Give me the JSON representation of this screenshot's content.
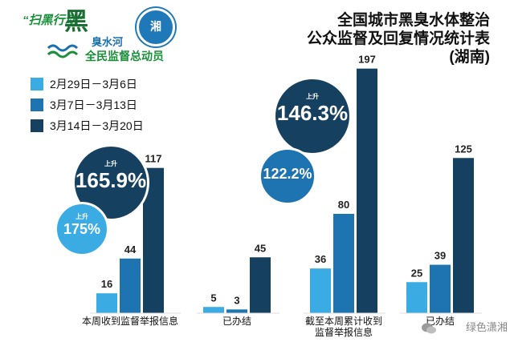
{
  "logo": {
    "tag": "“扫黑行动”",
    "big": "黑",
    "sub": "臭水河",
    "slogan": "全民监督总动员",
    "seal": "湘"
  },
  "title": {
    "line1": "全国城市黑臭水体整治",
    "line2": "公众监督及回复情况统计表",
    "line3": "(湖南)"
  },
  "footer": {
    "watermark": "绿色潇湘"
  },
  "colors": {
    "s1": "#3aace3",
    "s2": "#1e73b1",
    "s3": "#16405f"
  },
  "annotations": [
    {
      "label": "上升",
      "value": "165.9%",
      "color": "#16405f"
    },
    {
      "label": "上升",
      "value": "175%",
      "color": "#3aace3"
    },
    {
      "label": "上升",
      "value": "146.3%",
      "color": "#16405f"
    },
    {
      "label": "",
      "value": "122.2%",
      "color": "#1e73b1"
    }
  ],
  "chart_data": {
    "type": "bar",
    "title": "全国城市黑臭水体整治公众监督及回复情况统计表(湖南)",
    "categories": [
      "本周收到监督举报信息",
      "已办结",
      "截至本周累计收到监督举报信息",
      "已办结"
    ],
    "series": [
      {
        "name": "2月29日－3月6日",
        "values": [
          16,
          5,
          36,
          25
        ]
      },
      {
        "name": "3月7日－3月13日",
        "values": [
          44,
          3,
          80,
          39
        ]
      },
      {
        "name": "3月14日－3月20日",
        "values": [
          117,
          45,
          197,
          125
        ]
      }
    ],
    "legend": "top-left",
    "grid": false
  }
}
